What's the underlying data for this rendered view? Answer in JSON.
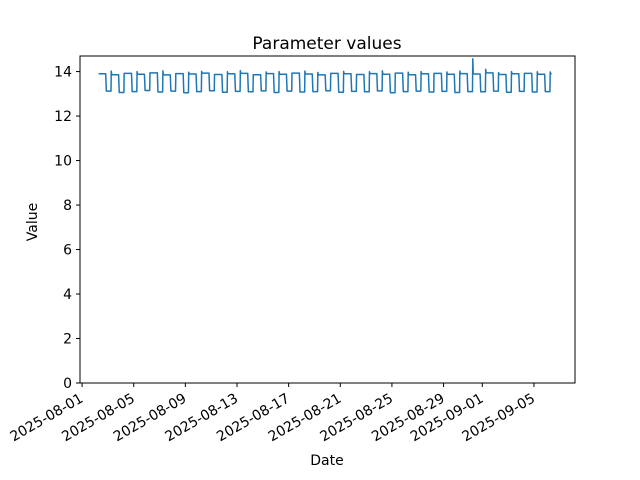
{
  "figure": {
    "title": "Parameter values",
    "xlabel": "Date",
    "ylabel": "Value"
  },
  "chart_data": {
    "type": "line",
    "title": "Parameter values",
    "xlabel": "Date",
    "ylabel": "Value",
    "line_color": "#1f77b4",
    "background_color": "#ffffff",
    "grid": false,
    "legend": false,
    "x_unit": "days since 2025-08-01 00:00",
    "xlim_days": [
      -0.16,
      38.18
    ],
    "ylim": [
      0,
      14.7
    ],
    "x_ticks": [
      {
        "d": 0,
        "label": "2025-08-01"
      },
      {
        "d": 4,
        "label": "2025-08-05"
      },
      {
        "d": 8,
        "label": "2025-08-09"
      },
      {
        "d": 12,
        "label": "2025-08-13"
      },
      {
        "d": 16,
        "label": "2025-08-17"
      },
      {
        "d": 20,
        "label": "2025-08-21"
      },
      {
        "d": 24,
        "label": "2025-08-25"
      },
      {
        "d": 28,
        "label": "2025-08-29"
      },
      {
        "d": 31,
        "label": "2025-09-01"
      },
      {
        "d": 35,
        "label": "2025-09-05"
      }
    ],
    "y_ticks": [
      0,
      2,
      4,
      6,
      8,
      10,
      12,
      14
    ],
    "series": [
      {
        "name": "Parameter",
        "pattern": "daily square wave: high plateau ~13.9 from ~06:00 to ~20:00, low plateau ~13.1 overnight; one anomalous spike to ~14.57 on 2025-08-31",
        "first_point_day": 1.32,
        "cycle_fields": [
          "rise_day_offset",
          "high",
          "low",
          "rise_peak"
        ],
        "cycles": [
          [
            1.26,
            13.9,
            13.12,
            13.9
          ],
          [
            2.26,
            13.86,
            13.06,
            14.02
          ],
          [
            3.26,
            13.92,
            13.1,
            13.92
          ],
          [
            4.26,
            13.88,
            13.15,
            14.0
          ],
          [
            5.26,
            13.94,
            13.08,
            13.94
          ],
          [
            6.26,
            13.85,
            13.12,
            14.03
          ],
          [
            7.26,
            13.91,
            13.05,
            13.91
          ],
          [
            8.26,
            13.89,
            13.1,
            13.97
          ],
          [
            9.26,
            13.93,
            13.14,
            14.01
          ],
          [
            10.26,
            13.87,
            13.07,
            13.87
          ],
          [
            11.26,
            13.9,
            13.11,
            13.99
          ],
          [
            12.26,
            13.92,
            13.09,
            14.04
          ],
          [
            13.26,
            13.86,
            13.13,
            13.86
          ],
          [
            14.26,
            13.91,
            13.06,
            13.98
          ],
          [
            15.26,
            13.88,
            13.12,
            14.0
          ],
          [
            16.26,
            13.93,
            13.08,
            13.93
          ],
          [
            17.26,
            13.89,
            13.1,
            14.02
          ],
          [
            18.26,
            13.85,
            13.14,
            13.96
          ],
          [
            19.26,
            13.92,
            13.07,
            13.92
          ],
          [
            20.26,
            13.9,
            13.11,
            14.01
          ],
          [
            21.26,
            13.87,
            13.09,
            13.87
          ],
          [
            22.26,
            13.91,
            13.13,
            13.99
          ],
          [
            23.26,
            13.88,
            13.05,
            14.03
          ],
          [
            24.26,
            13.93,
            13.1,
            13.93
          ],
          [
            25.26,
            13.86,
            13.12,
            13.97
          ],
          [
            26.26,
            13.9,
            13.08,
            14.0
          ],
          [
            27.26,
            13.92,
            13.11,
            13.92
          ],
          [
            28.26,
            13.88,
            13.06,
            13.98
          ],
          [
            29.26,
            13.91,
            13.1,
            14.02
          ],
          [
            30.26,
            13.89,
            13.09,
            14.57
          ],
          [
            31.26,
            13.94,
            13.12,
            14.1
          ],
          [
            32.26,
            13.87,
            13.07,
            13.95
          ],
          [
            33.26,
            13.9,
            13.11,
            14.0
          ],
          [
            34.26,
            13.92,
            13.08,
            13.92
          ],
          [
            35.26,
            13.88,
            13.1,
            13.99
          ]
        ],
        "tail_points": [
          [
            36.26,
            13.98
          ],
          [
            36.3,
            13.9
          ],
          [
            36.33,
            13.9
          ]
        ],
        "anomaly": {
          "date": "2025-08-31",
          "day_offset": 30.26,
          "peak_value": 14.57
        }
      }
    ]
  }
}
